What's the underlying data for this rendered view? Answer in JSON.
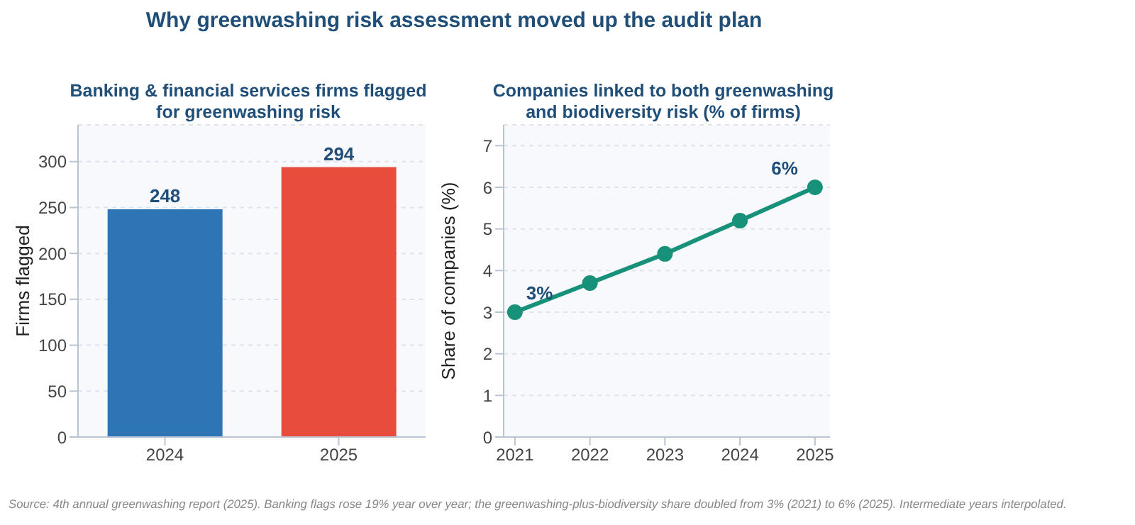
{
  "chart_data": [
    {
      "type": "bar",
      "title": "Why greenwashing risk assessment moved up the audit plan",
      "subtitle": "Banking & financial services firms flagged for greenwashing risk",
      "ylabel": "Firms flagged",
      "categories": [
        "2024",
        "2025"
      ],
      "values": [
        248,
        294
      ],
      "colors": [
        "#2e75b6",
        "#e74c3c"
      ],
      "data_labels": true,
      "ylim": [
        0,
        340
      ],
      "yticks": [
        0,
        50,
        100,
        150,
        200,
        250,
        300
      ],
      "grid": "y"
    },
    {
      "type": "line",
      "subtitle": "Companies linked to both greenwashing and biodiversity risk (% of firms)",
      "ylabel": "Share of companies (%)",
      "x": [
        2021,
        2022,
        2023,
        2024,
        2025
      ],
      "series": [
        {
          "color": "#17917a",
          "values": [
            3,
            3.7,
            4.4,
            5.2,
            6
          ]
        }
      ],
      "marker": "circle",
      "line_style": "solid",
      "xlim": [
        2020.85,
        2025.2
      ],
      "xticks": [
        2021,
        2022,
        2023,
        2024,
        2025
      ],
      "ylim": [
        0,
        7.5
      ],
      "yticks": [
        0,
        1,
        2,
        3,
        4,
        5,
        6,
        7
      ],
      "grid": "y",
      "annotations": [
        {
          "text": "3%",
          "x": 2021,
          "y": 3
        },
        {
          "text": "6%",
          "x": 2025,
          "y": 6
        },
        "Source: 4th annual greenwashing report (2025). Banking flags rose 19% year over year; the greenwashing-plus-biodiversity share doubled from 3% (2021) to 6% (2025). Intermediate years interpolated."
      ]
    }
  ]
}
